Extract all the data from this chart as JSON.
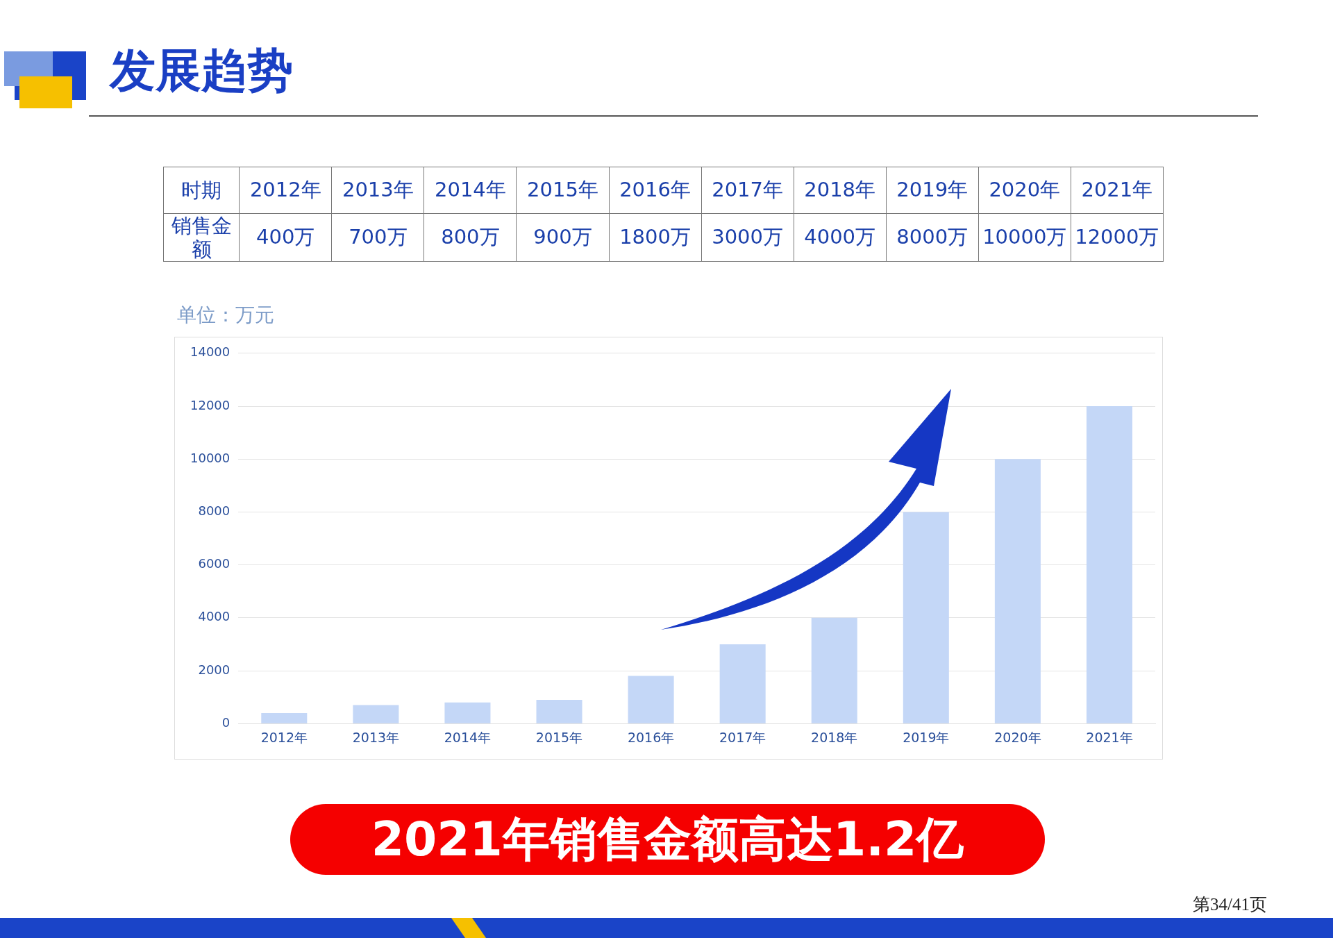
{
  "chart_data": {
    "type": "bar",
    "title": "发展趋势",
    "ylabel": "单位：万元",
    "categories": [
      "2012年",
      "2013年",
      "2014年",
      "2015年",
      "2016年",
      "2017年",
      "2018年",
      "2019年",
      "2020年",
      "2021年"
    ],
    "values": [
      400,
      700,
      800,
      900,
      1800,
      3000,
      4000,
      8000,
      10000,
      12000
    ],
    "value_labels": [
      "400万",
      "700万",
      "800万",
      "900万",
      "1800万",
      "3000万",
      "4000万",
      "8000万",
      "10000万",
      "12000万"
    ],
    "color": "#c4d7f7",
    "ylim": [
      0,
      14000
    ],
    "yticks": [
      0,
      2000,
      4000,
      6000,
      8000,
      10000,
      12000,
      14000
    ],
    "grid": "y",
    "legend": false,
    "annotations": [
      "时期",
      "销售金额",
      "2021年销售金额高达1.2亿",
      "第34/41页"
    ]
  }
}
